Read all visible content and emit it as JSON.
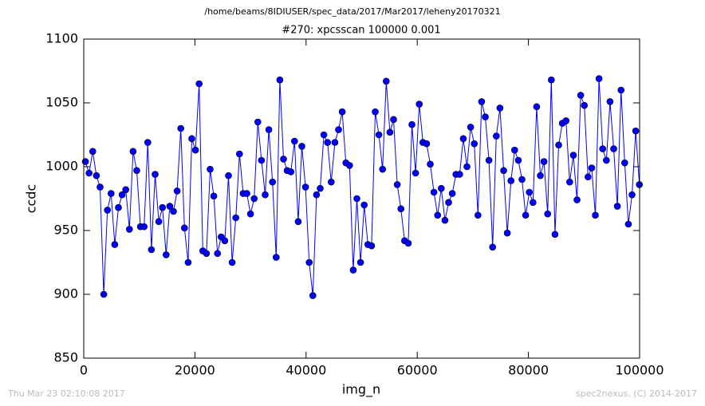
{
  "header": "/home/beams/8IDIUSER/spec_data/2017/Mar2017/leheny20170321",
  "footer_left": "Thu Mar 23 02:10:08 2017",
  "footer_right": "spec2nexus, (C) 2014-2017",
  "chart_data": {
    "type": "line",
    "title": "#270: xpcsscan 100000 0.001",
    "xlabel": "img_n",
    "ylabel": "ccdc",
    "xlim": [
      0,
      100000
    ],
    "xticks": [
      0,
      20000,
      40000,
      60000,
      80000,
      100000
    ],
    "ylim": [
      850,
      1100
    ],
    "yticks": [
      850,
      900,
      950,
      1000,
      1050,
      1100
    ],
    "grid": false,
    "x": [
      300,
      960,
      1620,
      2280,
      2940,
      3600,
      4260,
      4920,
      5580,
      6240,
      6900,
      7560,
      8220,
      8880,
      9540,
      10200,
      10860,
      11520,
      12180,
      12840,
      13500,
      14160,
      14820,
      15480,
      16140,
      16800,
      17460,
      18120,
      18780,
      19440,
      20100,
      20760,
      21420,
      22080,
      22740,
      23400,
      24060,
      24720,
      25380,
      26040,
      26700,
      27360,
      28020,
      28680,
      29340,
      30000,
      30660,
      31320,
      31980,
      32640,
      33300,
      33960,
      34620,
      35280,
      35940,
      36600,
      37260,
      37920,
      38580,
      39240,
      39900,
      40560,
      41220,
      41880,
      42540,
      43200,
      43860,
      44520,
      45180,
      45840,
      46500,
      47160,
      47820,
      48480,
      49140,
      49800,
      50460,
      51120,
      51780,
      52440,
      53100,
      53760,
      54420,
      55080,
      55740,
      56400,
      57060,
      57720,
      58380,
      59040,
      59700,
      60360,
      61020,
      61680,
      62340,
      63000,
      63660,
      64320,
      64980,
      65640,
      66300,
      66960,
      67620,
      68280,
      68940,
      69600,
      70260,
      70920,
      71580,
      72240,
      72900,
      73560,
      74220,
      74880,
      75540,
      76200,
      76860,
      77520,
      78180,
      78840,
      79500,
      80160,
      80820,
      81480,
      82140,
      82800,
      83460,
      84120,
      84780,
      85440,
      86100,
      86760,
      87420,
      88080,
      88740,
      89400,
      90060,
      90720,
      91380,
      92040,
      92700,
      93360,
      94020,
      94680,
      95340,
      96000,
      96660,
      97320,
      97980,
      98640,
      99300,
      99960
    ],
    "series": [
      {
        "color": "#0000ff",
        "values": [
          1004,
          995,
          1012,
          993,
          984,
          900,
          966,
          979,
          939,
          968,
          978,
          982,
          951,
          1012,
          997,
          953,
          953,
          1019,
          935,
          994,
          957,
          968,
          931,
          969,
          965,
          981,
          1030,
          952,
          925,
          1022,
          1013,
          1065,
          934,
          932,
          998,
          977,
          932,
          945,
          942,
          993,
          925,
          960,
          1010,
          979,
          979,
          963,
          975,
          1035,
          1005,
          978,
          1029,
          988,
          929,
          1068,
          1006,
          997,
          996,
          1020,
          957,
          1016,
          984,
          925,
          899,
          978,
          983,
          1025,
          1019,
          988,
          1019,
          1029,
          1043,
          1003,
          1001,
          919,
          975,
          925,
          970,
          939,
          938,
          1043,
          1025,
          998,
          1067,
          1027,
          1037,
          986,
          967,
          942,
          940,
          1033,
          995,
          1049,
          1019,
          1018,
          1002,
          980,
          962,
          983,
          958,
          972,
          979,
          994,
          994,
          1022,
          1000,
          1031,
          1018,
          962,
          1051,
          1039,
          1005,
          937,
          1024,
          1046,
          997,
          948,
          989,
          1013,
          1005,
          990,
          962,
          980,
          972,
          1047,
          993,
          1004,
          963,
          1068,
          947,
          1017,
          1034,
          1036,
          988,
          1009,
          974,
          1056,
          1048,
          992,
          999,
          962,
          1069,
          1014,
          1005,
          1051,
          1014,
          969,
          1060,
          1003,
          955,
          978,
          1028,
          986
        ]
      }
    ]
  }
}
